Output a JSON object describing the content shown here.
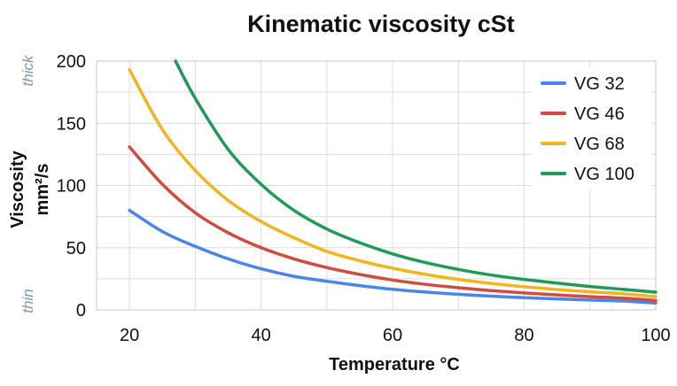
{
  "chart_data": {
    "type": "line",
    "title": "Kinematic viscosity cSt",
    "xlabel": "Temperature °C",
    "ylabel_line1": "Viscosity",
    "ylabel_line2": "mm²/s",
    "xlim": [
      15,
      100
    ],
    "ylim": [
      0,
      200
    ],
    "x_ticks": [
      20,
      40,
      60,
      80,
      100
    ],
    "y_ticks": [
      0,
      50,
      100,
      150,
      200
    ],
    "grid": true,
    "legend_position": "top-right",
    "side_labels": {
      "top": "thick",
      "bottom": "thin"
    },
    "x": [
      20,
      25,
      30,
      35,
      40,
      45,
      50,
      55,
      60,
      65,
      70,
      75,
      80,
      85,
      90,
      95,
      100
    ],
    "series": [
      {
        "name": "VG 32",
        "color": "#4a86e8",
        "values": [
          80,
          63,
          51,
          41,
          33,
          27,
          23,
          19.5,
          16.5,
          14.3,
          12.5,
          11,
          9.8,
          8.8,
          7.9,
          7.1,
          5.5
        ]
      },
      {
        "name": "VG 46",
        "color": "#d24b3e",
        "values": [
          131,
          101,
          78,
          62,
          50,
          41,
          34,
          28.5,
          24,
          20.5,
          17.8,
          15.5,
          13.6,
          12,
          10.6,
          9.4,
          7.5
        ]
      },
      {
        "name": "VG 68",
        "color": "#f0b51f",
        "values": [
          193,
          145,
          112,
          88,
          71,
          58,
          47,
          39.5,
          33.5,
          28.5,
          24.5,
          21.3,
          18.6,
          16.4,
          14.5,
          12.9,
          10.5
        ]
      },
      {
        "name": "VG 100",
        "color": "#1f9a57",
        "x": [
          27,
          30,
          35,
          40,
          45,
          50,
          55,
          60,
          65,
          70,
          75,
          80,
          85,
          90,
          95,
          100
        ],
        "values": [
          200,
          170,
          129,
          101,
          80,
          65,
          54,
          45,
          38,
          32.5,
          28,
          24.5,
          21.5,
          18.8,
          16.5,
          14.2
        ]
      }
    ]
  }
}
